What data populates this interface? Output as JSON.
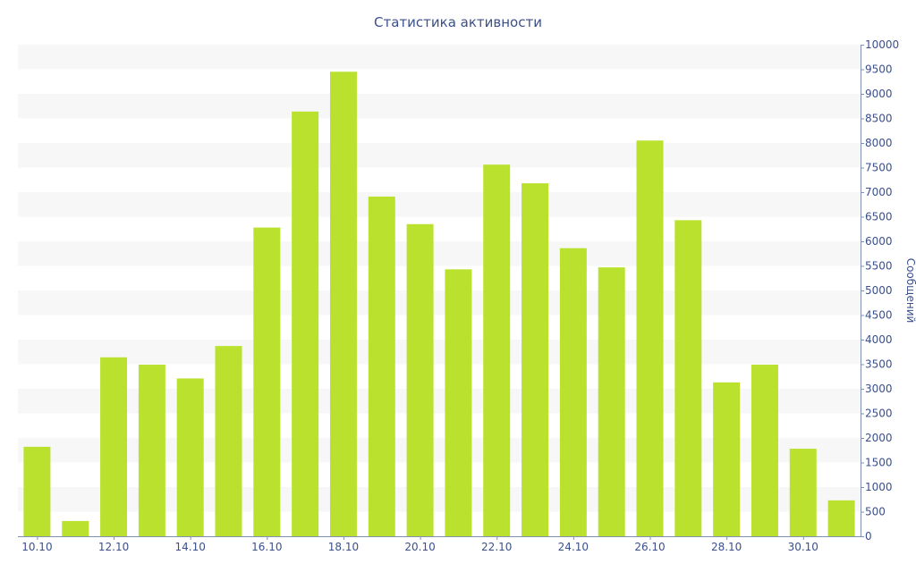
{
  "chart_data": {
    "type": "bar",
    "title": "Статистика активности",
    "xlabel": "",
    "ylabel": "Сообщений",
    "ylim": [
      0,
      10000
    ],
    "ytick_step": 500,
    "y_axis_side": "right",
    "grid": "alternating horizontal bands",
    "bar_color": "#b9e12e",
    "categories": [
      "10.10",
      "11.10",
      "12.10",
      "13.10",
      "14.10",
      "15.10",
      "16.10",
      "17.10",
      "18.10",
      "19.10",
      "20.10",
      "21.10",
      "22.10",
      "23.10",
      "24.10",
      "25.10",
      "26.10",
      "27.10",
      "28.10",
      "29.10",
      "30.10",
      "31.10"
    ],
    "values": [
      1820,
      310,
      3640,
      3490,
      3210,
      3870,
      6280,
      8640,
      9450,
      6910,
      6350,
      5430,
      7560,
      7180,
      5860,
      5470,
      8050,
      6430,
      3130,
      3490,
      1780,
      730
    ],
    "x_tick_labels": [
      "10.10",
      "12.10",
      "14.10",
      "16.10",
      "18.10",
      "20.10",
      "22.10",
      "24.10",
      "26.10",
      "28.10",
      "30.10"
    ],
    "y_tick_labels": [
      "0",
      "500",
      "1000",
      "1500",
      "2000",
      "2500",
      "3000",
      "3500",
      "4000",
      "4500",
      "5000",
      "5500",
      "6000",
      "6500",
      "7000",
      "7500",
      "8000",
      "8500",
      "9000",
      "9500",
      "10000"
    ]
  }
}
